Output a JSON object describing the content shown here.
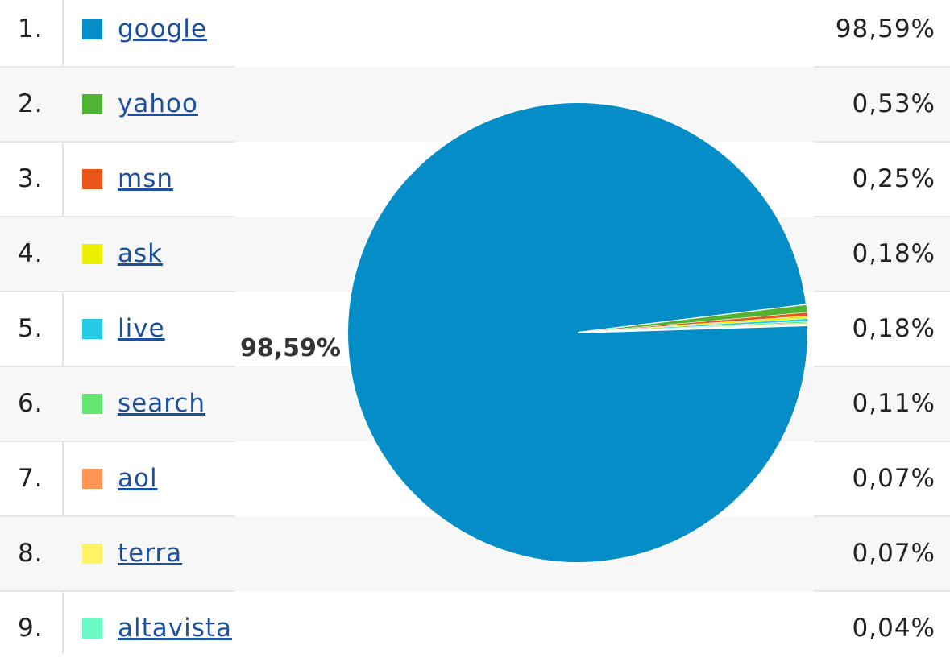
{
  "chart_data": {
    "type": "pie",
    "categories": [
      "google",
      "yahoo",
      "msn",
      "ask",
      "live",
      "search",
      "aol",
      "terra",
      "altavista"
    ],
    "values": [
      98.59,
      0.53,
      0.25,
      0.18,
      0.18,
      0.11,
      0.07,
      0.07,
      0.04
    ],
    "colors": [
      "#058dc7",
      "#50b432",
      "#ed561b",
      "#edef00",
      "#24cbe5",
      "#64e572",
      "#ff9655",
      "#fff263",
      "#6af9c4"
    ],
    "slice_labels": [
      "98,59%"
    ]
  },
  "legend": {
    "rows": [
      {
        "rank": "1.",
        "name": "google",
        "pct": "98,59%"
      },
      {
        "rank": "2.",
        "name": "yahoo",
        "pct": "0,53%"
      },
      {
        "rank": "3.",
        "name": "msn",
        "pct": "0,25%"
      },
      {
        "rank": "4.",
        "name": "ask",
        "pct": "0,18%"
      },
      {
        "rank": "5.",
        "name": "live",
        "pct": "0,18%"
      },
      {
        "rank": "6.",
        "name": "search",
        "pct": "0,11%"
      },
      {
        "rank": "7.",
        "name": "aol",
        "pct": "0,07%"
      },
      {
        "rank": "8.",
        "name": "terra",
        "pct": "0,07%"
      },
      {
        "rank": "9.",
        "name": "altavista",
        "pct": "0,04%"
      }
    ]
  }
}
